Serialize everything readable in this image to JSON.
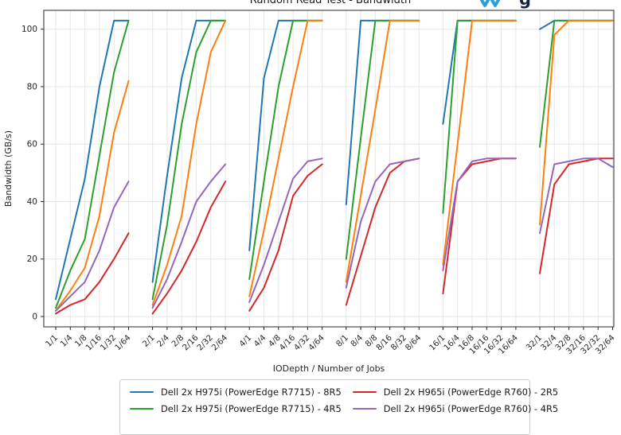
{
  "title": "Random Read Test - Bandwidth",
  "watermark": {
    "letter": "g",
    "icon_color": "#2d9fd8",
    "letter_color": "#16263f"
  },
  "legend": {
    "entries": [
      {
        "label": "Dell 2x H975i (PowerEdge R7715) - 8R5",
        "color": "#1f77b4"
      },
      {
        "label": "Dell 2x H975i (PowerEdge R7715) - 4R5",
        "color": "#2ca02c"
      },
      {
        "label": "Dell 2x H965i (PowerEdge R760) - 2R5",
        "color": "#d62728"
      },
      {
        "label": "Dell 2x H965i (PowerEdge R760) - 4R5",
        "color": "#9467bd"
      }
    ],
    "note": "legend box is clipped by bottom edge of image; a fifth (orange) series entry is not visible"
  },
  "chart_data": {
    "type": "line",
    "title": "Random Read Test - Bandwidth",
    "xlabel": "IODepth / Number of Jobs",
    "ylabel": "Bandwidth (GB/s)",
    "y_ticks": [
      0,
      20,
      40,
      60,
      80,
      100
    ],
    "ylim": [
      -4,
      107
    ],
    "grid": true,
    "legend_position": "bottom",
    "group_size": 6,
    "x_tick_labels": [
      "1/1",
      "1/4",
      "1/8",
      "1/16",
      "1/32",
      "1/64",
      "2/1",
      "2/4",
      "2/8",
      "2/16",
      "2/32",
      "2/64",
      "4/1",
      "4/4",
      "4/8",
      "4/16",
      "4/32",
      "4/64",
      "8/1",
      "8/4",
      "8/8",
      "8/16",
      "8/32",
      "8/64",
      "16/1",
      "16/4",
      "16/8",
      "16/16",
      "16/32",
      "16/64",
      "32/1",
      "32/4",
      "32/8",
      "32/16",
      "32/32",
      "32/64"
    ],
    "series": [
      {
        "name": "Dell 2x H975i (PowerEdge R7715) - 8R5",
        "color": "#1f77b4",
        "legend_visible": true,
        "values": [
          6,
          27,
          48,
          80,
          103,
          103,
          12,
          49,
          83,
          103,
          103,
          103,
          23,
          83,
          103,
          103,
          103,
          103,
          39,
          103,
          103,
          103,
          103,
          103,
          67,
          103,
          103,
          103,
          103,
          103,
          100,
          103,
          103,
          103,
          103,
          103
        ]
      },
      {
        "name": "Dell 2x H975i (PowerEdge R7715) - 4R5",
        "color": "#2ca02c",
        "legend_visible": true,
        "values": [
          3,
          16,
          27,
          56,
          85,
          103,
          6,
          32,
          67,
          92,
          103,
          103,
          13,
          47,
          80,
          103,
          103,
          103,
          20,
          62,
          103,
          103,
          103,
          103,
          36,
          103,
          103,
          103,
          103,
          103,
          59,
          103,
          103,
          103,
          103,
          103
        ]
      },
      {
        "name": "",
        "color": "#ff7f0e",
        "legend_visible": false,
        "values": [
          2,
          9,
          17,
          35,
          64,
          82,
          4,
          18,
          35,
          67,
          92,
          103,
          7,
          30,
          55,
          80,
          103,
          103,
          12,
          42,
          72,
          103,
          103,
          103,
          18,
          60,
          103,
          103,
          103,
          103,
          32,
          98,
          103,
          103,
          103,
          103
        ]
      },
      {
        "name": "Dell 2x H965i (PowerEdge R760) - 2R5",
        "color": "#d62728",
        "legend_visible": true,
        "values": [
          1,
          4,
          6,
          12,
          20,
          29,
          1,
          8,
          16,
          26,
          38,
          47,
          2,
          10,
          23,
          42,
          49,
          53,
          4,
          21,
          38,
          50,
          54,
          55,
          8,
          47,
          53,
          54,
          55,
          55,
          15,
          46,
          53,
          54,
          55,
          55
        ]
      },
      {
        "name": "Dell 2x H965i (PowerEdge R760) - 4R5",
        "color": "#9467bd",
        "legend_visible": true,
        "values": [
          2,
          7,
          12,
          23,
          38,
          47,
          3,
          13,
          26,
          40,
          47,
          53,
          5,
          18,
          33,
          48,
          54,
          55,
          10,
          33,
          47,
          53,
          54,
          55,
          16,
          47,
          54,
          55,
          55,
          55,
          29,
          53,
          54,
          55,
          55,
          52
        ]
      }
    ]
  }
}
